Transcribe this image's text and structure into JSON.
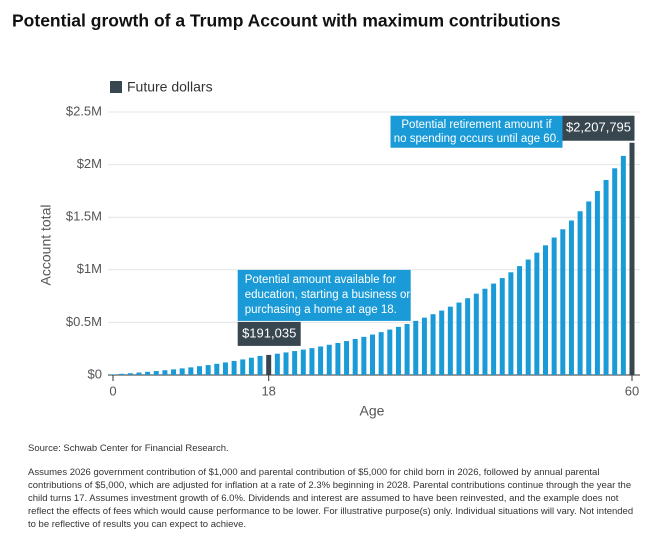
{
  "chart_data": {
    "type": "bar",
    "title": "Potential growth of a Trump Account with maximum contributions",
    "x_label": "Age",
    "y_label": "Account total",
    "x": [
      0,
      1,
      2,
      3,
      4,
      5,
      6,
      7,
      8,
      9,
      10,
      11,
      12,
      13,
      14,
      15,
      16,
      17,
      18,
      19,
      20,
      21,
      22,
      23,
      24,
      25,
      26,
      27,
      28,
      29,
      30,
      31,
      32,
      33,
      34,
      35,
      36,
      37,
      38,
      39,
      40,
      41,
      42,
      43,
      44,
      45,
      46,
      47,
      48,
      49,
      50,
      51,
      52,
      53,
      54,
      55,
      56,
      57,
      58,
      59,
      60
    ],
    "series": [
      {
        "name": "Future dollars",
        "color": "#37464f",
        "bar_color": "#1a9bd7",
        "values": [
          6000,
          11360,
          17157,
          23419,
          30177,
          37464,
          45314,
          53764,
          62853,
          72622,
          83115,
          94379,
          106463,
          119420,
          133305,
          148178,
          164102,
          181143,
          191035,
          202497,
          214647,
          227525,
          241177,
          255647,
          270986,
          287245,
          304480,
          322749,
          342114,
          362641,
          384399,
          407463,
          431911,
          457826,
          485296,
          514414,
          545279,
          577996,
          612676,
          649437,
          688403,
          729707,
          773489,
          819898,
          869092,
          921238,
          976512,
          1035103,
          1097209,
          1163042,
          1232824,
          1306793,
          1385201,
          1468313,
          1556412,
          1649797,
          1748785,
          1853712,
          1964935,
          2082831,
          2207795
        ],
        "value_labels": [
          null,
          null,
          null,
          null,
          null,
          null,
          null,
          null,
          null,
          null,
          null,
          null,
          null,
          null,
          null,
          null,
          null,
          null,
          "$191,035",
          null,
          null,
          null,
          null,
          null,
          null,
          null,
          null,
          null,
          null,
          null,
          null,
          null,
          null,
          null,
          null,
          null,
          null,
          null,
          null,
          null,
          null,
          null,
          null,
          null,
          null,
          null,
          null,
          null,
          null,
          null,
          null,
          null,
          null,
          null,
          null,
          null,
          null,
          null,
          null,
          null,
          "$2,207,795"
        ]
      }
    ],
    "annotations": [
      [
        "Potential amount available for",
        "education, starting a business or",
        "purchasing a home at age 18."
      ],
      [
        "Potential retirement amount if",
        "no spending occurs until age 60."
      ]
    ],
    "annotation_color": "#1a9bd7",
    "xlim": [
      0,
      60
    ],
    "xticks": [
      0,
      18,
      60
    ],
    "ylim": [
      0,
      2500000
    ],
    "yticks": [
      {
        "value": 0,
        "label": "$0"
      },
      {
        "value": 500000,
        "label": "$0.5M"
      },
      {
        "value": 1000000,
        "label": "$1M"
      },
      {
        "value": 1500000,
        "label": "$1.5M"
      },
      {
        "value": 2000000,
        "label": "$2M"
      },
      {
        "value": 2500000,
        "label": "$2.5M"
      }
    ],
    "grid": true,
    "source": "Source: Schwab Center for Financial Research.",
    "footnote": "Assumes 2026 government contribution of $1,000 and parental contribution of $5,000 for child born in 2026, followed by annual parental contributions of $5,000, which are adjusted for inflation at a rate of 2.3% beginning in 2028. Parental contributions continue through the year the child turns 17. Assumes investment growth of 6.0%. Dividends and interest are assumed to have been reinvested, and the example does not reflect the effects of fees which would cause performance to be lower. For illustrative purpose(s) only. Individual situations will vary. Not intended to be reflective of results you can expect to achieve."
  }
}
